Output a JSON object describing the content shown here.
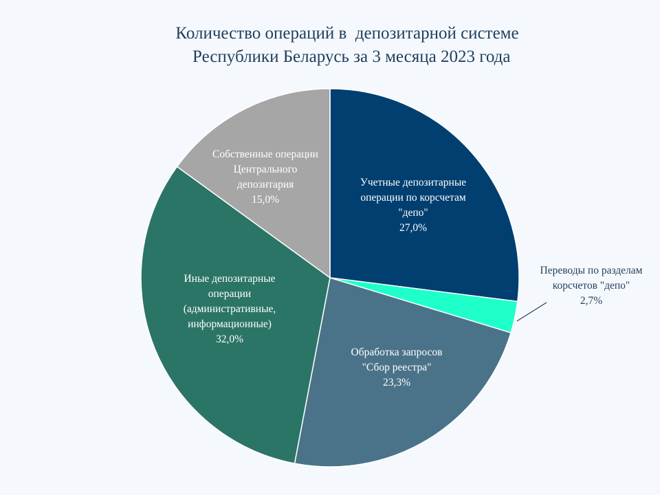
{
  "chart_data": {
    "type": "pie",
    "title": [
      "Количество операций в  депозитарной системе",
      "  Республики Беларусь за 3 месяца 2023 года"
    ],
    "series": [
      {
        "name": "Учетные депозитарные операции  по корсчетам \"депо\"",
        "label_lines": [
          "Учетные депозитарные",
          "операции  по корсчетам",
          "\"депо\""
        ],
        "value": 27.0,
        "value_label": "27,0%",
        "color": "#003f70"
      },
      {
        "name": "Переводы по разделам корсчетов \"депо\"",
        "label_lines": [
          "Переводы по разделам",
          "корсчетов \"депо\""
        ],
        "value": 2.7,
        "value_label": "2,7%",
        "color": "#1effc9"
      },
      {
        "name": "Обработка запросов \"Сбор реестра\"",
        "label_lines": [
          "Обработка запросов",
          "\"Сбор  реестра\""
        ],
        "value": 23.3,
        "value_label": "23,3%",
        "color": "#4a7389"
      },
      {
        "name": "Иные депозитарные операции (административные, информационные)",
        "label_lines": [
          "Иные депозитарные",
          "операции",
          "(административные,",
          "информационные)"
        ],
        "value": 32.0,
        "value_label": "32,0%",
        "color": "#2b7566"
      },
      {
        "name": "Собственные операции Центрального депозитария",
        "label_lines": [
          "Собственные  операции",
          "Центрального",
          "депозитария"
        ],
        "value": 15.0,
        "value_label": "15,0%",
        "color": "#a6a6a6"
      }
    ]
  }
}
